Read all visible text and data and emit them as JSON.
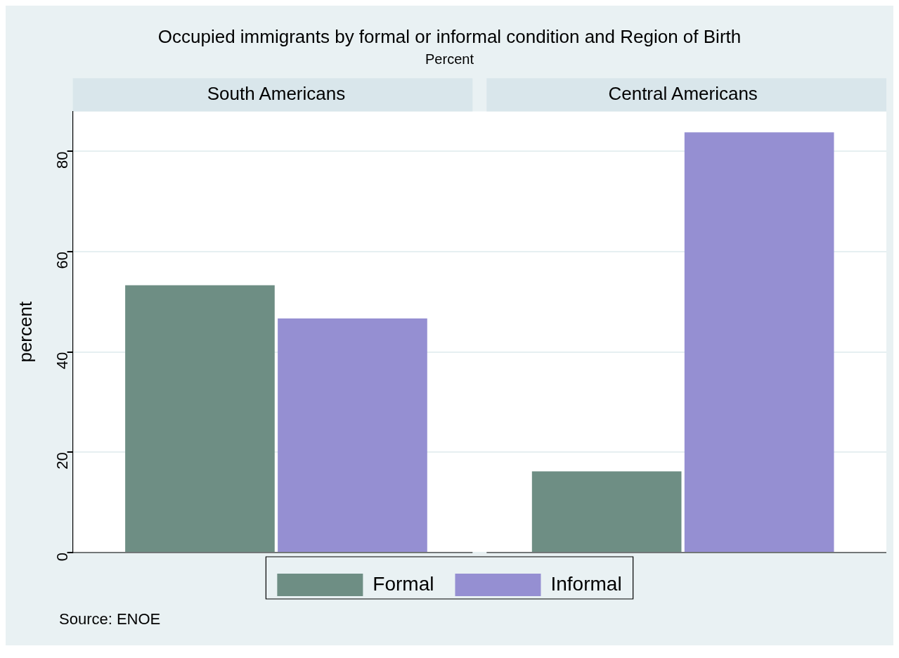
{
  "chart_data": {
    "type": "bar",
    "title": "Occupied immigrants by formal or informal condition and Region of Birth",
    "subtitle": "Percent",
    "ylabel": "percent",
    "categories": [
      "South Americans",
      "Central Americans"
    ],
    "series": [
      {
        "name": "Formal",
        "color": "#6e8e84",
        "values": [
          53.3,
          16.2
        ]
      },
      {
        "name": "Informal",
        "color": "#958fd2",
        "values": [
          46.7,
          83.8
        ]
      }
    ],
    "ylim": [
      0,
      88
    ],
    "yticks": [
      0,
      20,
      40,
      60,
      80
    ],
    "grid": "y",
    "legend": "bottom",
    "annotations": [
      "Source: ENOE"
    ]
  }
}
